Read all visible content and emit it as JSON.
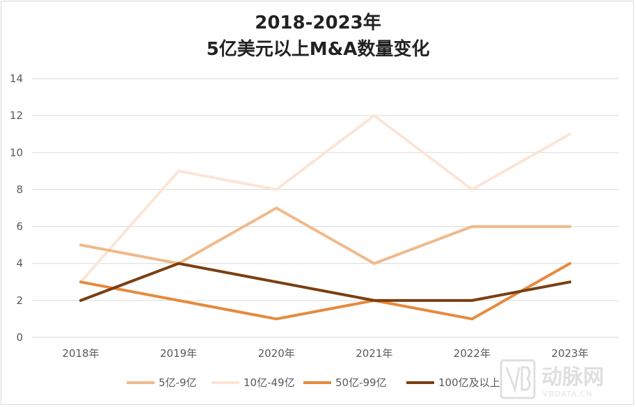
{
  "chart_data": {
    "type": "line",
    "title_lines": [
      "2018-2023年",
      "5亿美元以上M&A数量变化"
    ],
    "categories": [
      "2018年",
      "2019年",
      "2020年",
      "2021年",
      "2022年",
      "2023年"
    ],
    "ylim": [
      0,
      14
    ],
    "yticks": [
      0,
      2,
      4,
      6,
      8,
      10,
      12,
      14
    ],
    "grid": true,
    "legend_position": "bottom",
    "series": [
      {
        "name": "5亿-9亿",
        "values": [
          5,
          4,
          7,
          4,
          6,
          6
        ],
        "color": "#f0b98a"
      },
      {
        "name": "10亿-49亿",
        "values": [
          3,
          9,
          8,
          12,
          8,
          11
        ],
        "color": "#fbe5d6"
      },
      {
        "name": "50亿-99亿",
        "values": [
          3,
          2,
          1,
          2,
          1,
          4
        ],
        "color": "#e58a3c"
      },
      {
        "name": "100亿及以上",
        "values": [
          2,
          4,
          3,
          2,
          2,
          3
        ],
        "color": "#7a3f12"
      }
    ]
  },
  "watermark": {
    "text": "动脉网",
    "sub": "VBDATA.CN"
  }
}
